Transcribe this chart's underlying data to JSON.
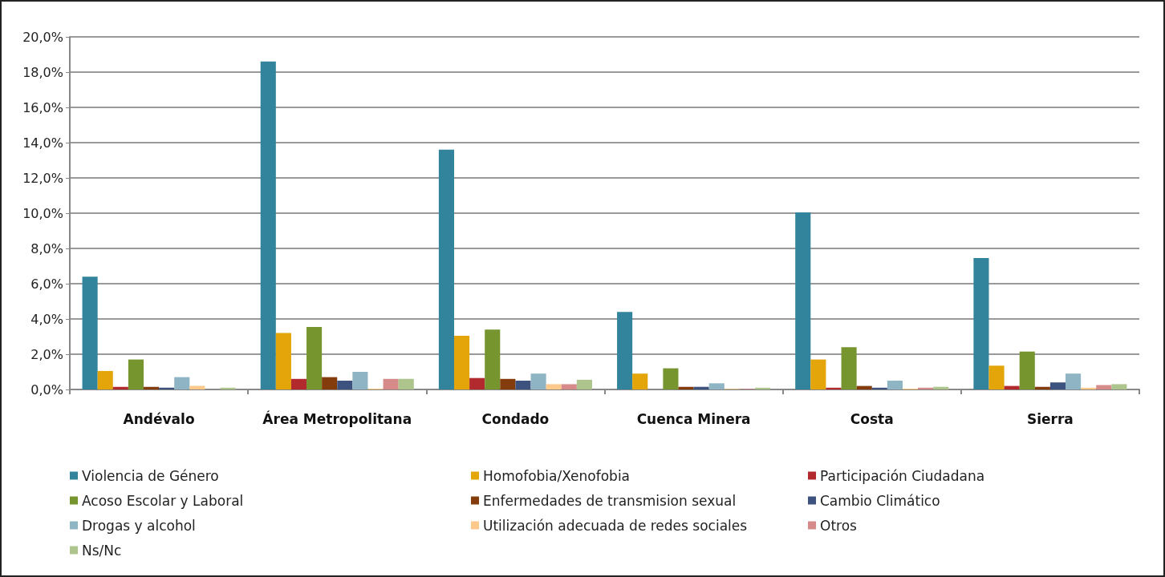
{
  "chart_data": {
    "type": "bar",
    "categories": [
      "Andévalo",
      "Área Metropolitana",
      "Condado",
      "Cuenca Minera",
      "Costa",
      "Sierra"
    ],
    "series": [
      {
        "name": "Violencia de Género",
        "color": "#31849b",
        "values": [
          6.4,
          18.6,
          13.6,
          4.4,
          10.05,
          7.45
        ]
      },
      {
        "name": "Homofobia/Xenofobia",
        "color": "#e3a50a",
        "values": [
          1.05,
          3.2,
          3.05,
          0.9,
          1.7,
          1.35
        ]
      },
      {
        "name": "Participación Ciudadana",
        "color": "#b22a2e",
        "values": [
          0.15,
          0.6,
          0.65,
          0,
          0.1,
          0.2
        ]
      },
      {
        "name": "Acoso Escolar y Laboral",
        "color": "#77952f",
        "values": [
          1.7,
          3.55,
          3.4,
          1.2,
          2.4,
          2.15
        ]
      },
      {
        "name": "Enfermedades de transmision sexual",
        "color": "#843c0c",
        "values": [
          0.15,
          0.7,
          0.6,
          0.15,
          0.2,
          0.15
        ]
      },
      {
        "name": "Cambio Climático",
        "color": "#3e527f",
        "values": [
          0.1,
          0.5,
          0.5,
          0.15,
          0.1,
          0.4
        ]
      },
      {
        "name": "Drogas y alcohol",
        "color": "#8fb4c3",
        "values": [
          0.7,
          1.0,
          0.9,
          0.35,
          0.5,
          0.9
        ]
      },
      {
        "name": "Utilización adecuada de redes sociales",
        "color": "#fdc98a",
        "values": [
          0.2,
          0.05,
          0.3,
          0.03,
          0.05,
          0.1
        ]
      },
      {
        "name": "Otros",
        "color": "#d78a8a",
        "values": [
          null,
          0.6,
          0.3,
          0.03,
          0.1,
          0.25
        ]
      },
      {
        "name": "Ns/Nc",
        "color": "#adc48d",
        "values": [
          0.1,
          0.6,
          0.55,
          0.1,
          0.15,
          0.3
        ]
      }
    ],
    "ylim": [
      0,
      20
    ],
    "yticks": [
      {
        "value": 0,
        "label": "0,0%"
      },
      {
        "value": 2,
        "label": "2,0%"
      },
      {
        "value": 4,
        "label": "4,0%"
      },
      {
        "value": 6,
        "label": "6,0%"
      },
      {
        "value": 8,
        "label": "8,0%"
      },
      {
        "value": 10,
        "label": "10,0%"
      },
      {
        "value": 12,
        "label": "12,0%"
      },
      {
        "value": 14,
        "label": "14,0%"
      },
      {
        "value": 16,
        "label": "16,0%"
      },
      {
        "value": 18,
        "label": "18,0%"
      },
      {
        "value": 20,
        "label": "20,0%"
      }
    ],
    "grid": "y",
    "legend": "bottom"
  }
}
